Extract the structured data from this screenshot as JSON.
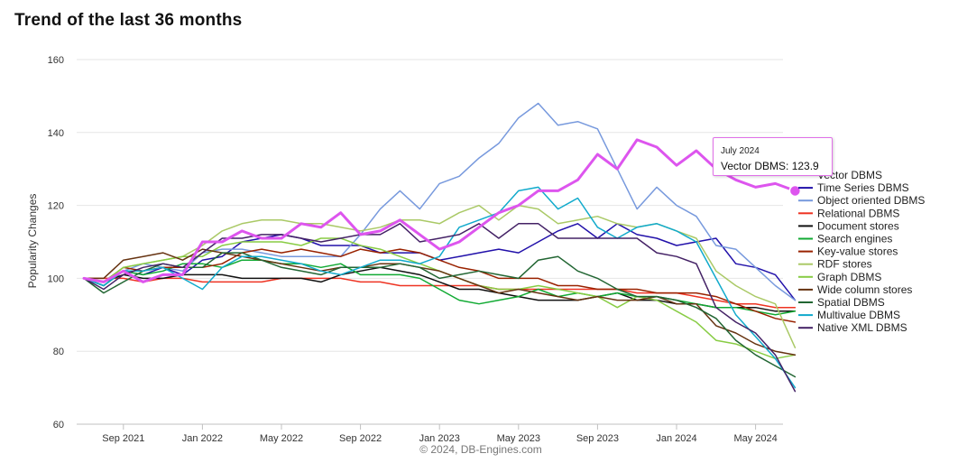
{
  "page_title": "Trend of the last 36 months",
  "credit": "© 2024, DB-Engines.com",
  "tooltip": {
    "date": "July 2024",
    "text": "Vector DBMS: 123.9"
  },
  "chart_data": {
    "type": "line",
    "title": "Trend of the last 36 months",
    "ylabel": "Popularity Changes",
    "xlabel": "",
    "ylim": [
      60,
      160
    ],
    "yticks": [
      60,
      80,
      100,
      120,
      140,
      160
    ],
    "x_start": "2021-07",
    "xticks": [
      {
        "label": "Sep 2021",
        "index": 2
      },
      {
        "label": "Jan 2022",
        "index": 6
      },
      {
        "label": "May 2022",
        "index": 10
      },
      {
        "label": "Sep 2022",
        "index": 14
      },
      {
        "label": "Jan 2023",
        "index": 18
      },
      {
        "label": "May 2023",
        "index": 22
      },
      {
        "label": "Sep 2023",
        "index": 26
      },
      {
        "label": "Jan 2024",
        "index": 30
      },
      {
        "label": "May 2024",
        "index": 34
      }
    ],
    "grid": "horizontal",
    "legend_position": "right",
    "series": [
      {
        "name": "Vector DBMS",
        "color": "#dd55ee",
        "width": 3,
        "values": [
          100,
          99,
          102,
          99,
          101,
          101,
          110,
          110,
          113,
          111,
          111,
          115,
          114,
          118,
          112,
          113,
          116,
          112,
          108,
          110,
          114,
          118,
          120,
          124,
          124,
          127,
          134,
          130,
          138,
          136,
          131,
          135,
          130,
          127,
          125,
          126,
          124
        ]
      },
      {
        "name": "Time Series DBMS",
        "color": "#2211aa",
        "width": 1.5,
        "values": [
          100,
          98,
          102,
          101,
          103,
          101,
          105,
          106,
          110,
          111,
          112,
          111,
          109,
          109,
          109,
          107,
          107,
          107,
          105,
          106,
          107,
          108,
          107,
          110,
          113,
          115,
          111,
          115,
          112,
          111,
          109,
          110,
          111,
          104,
          103,
          101,
          94
        ]
      },
      {
        "name": "Object oriented DBMS",
        "color": "#7799dd",
        "width": 1.5,
        "values": [
          100,
          98,
          102,
          104,
          103,
          102,
          107,
          108,
          108,
          107,
          106,
          106,
          106,
          106,
          112,
          119,
          124,
          119,
          126,
          128,
          133,
          137,
          144,
          148,
          142,
          143,
          141,
          130,
          119,
          125,
          120,
          117,
          109,
          108,
          103,
          98,
          94
        ]
      },
      {
        "name": "Relational DBMS",
        "color": "#ee3322",
        "width": 1.5,
        "values": [
          100,
          100,
          100,
          99,
          100,
          100,
          99,
          99,
          99,
          99,
          100,
          100,
          100,
          100,
          99,
          99,
          98,
          98,
          98,
          98,
          98,
          97,
          97,
          97,
          97,
          97,
          97,
          97,
          96,
          96,
          96,
          95,
          94,
          93,
          93,
          92,
          92
        ]
      },
      {
        "name": "Document stores",
        "color": "#111111",
        "width": 1.5,
        "values": [
          100,
          99,
          101,
          100,
          100,
          101,
          101,
          101,
          100,
          100,
          100,
          100,
          99,
          101,
          102,
          103,
          102,
          101,
          99,
          97,
          97,
          96,
          95,
          94,
          94,
          94,
          95,
          96,
          94,
          94,
          93,
          93,
          92,
          92,
          92,
          91,
          91
        ]
      },
      {
        "name": "Search engines",
        "color": "#11aa33",
        "width": 1.5,
        "values": [
          100,
          98,
          102,
          101,
          102,
          104,
          104,
          103,
          105,
          105,
          104,
          104,
          103,
          104,
          101,
          101,
          101,
          100,
          97,
          94,
          93,
          94,
          95,
          97,
          95,
          96,
          95,
          96,
          95,
          95,
          94,
          93,
          92,
          92,
          91,
          90,
          91
        ]
      },
      {
        "name": "Key-value stores",
        "color": "#992200",
        "width": 1.5,
        "values": [
          100,
          99,
          103,
          102,
          103,
          103,
          103,
          104,
          107,
          108,
          107,
          108,
          107,
          106,
          108,
          107,
          108,
          107,
          105,
          103,
          102,
          100,
          100,
          100,
          98,
          98,
          97,
          97,
          97,
          96,
          96,
          96,
          95,
          93,
          91,
          89,
          88
        ]
      },
      {
        "name": "RDF stores",
        "color": "#aac966",
        "width": 1.5,
        "values": [
          100,
          99,
          103,
          104,
          105,
          106,
          109,
          113,
          115,
          116,
          116,
          115,
          115,
          114,
          113,
          114,
          116,
          116,
          115,
          118,
          120,
          116,
          120,
          119,
          115,
          116,
          117,
          115,
          114,
          115,
          113,
          111,
          102,
          98,
          95,
          93,
          81
        ]
      },
      {
        "name": "Graph DBMS",
        "color": "#88cc44",
        "width": 1.5,
        "values": [
          100,
          99,
          103,
          104,
          105,
          106,
          106,
          109,
          110,
          110,
          110,
          109,
          111,
          111,
          109,
          108,
          106,
          104,
          102,
          100,
          98,
          97,
          97,
          98,
          97,
          96,
          95,
          92,
          95,
          94,
          91,
          88,
          83,
          82,
          80,
          78,
          79
        ]
      },
      {
        "name": "Wide column stores",
        "color": "#663311",
        "width": 1.5,
        "values": [
          100,
          100,
          105,
          106,
          107,
          105,
          108,
          107,
          106,
          105,
          104,
          103,
          102,
          103,
          103,
          104,
          104,
          103,
          102,
          100,
          98,
          96,
          97,
          96,
          95,
          94,
          95,
          94,
          94,
          95,
          93,
          93,
          87,
          85,
          82,
          80,
          79
        ]
      },
      {
        "name": "Spatial DBMS",
        "color": "#226633",
        "width": 1.5,
        "values": [
          100,
          96,
          99,
          102,
          104,
          103,
          103,
          107,
          107,
          105,
          103,
          102,
          101,
          103,
          103,
          103,
          104,
          103,
          100,
          101,
          102,
          101,
          100,
          105,
          106,
          102,
          100,
          97,
          95,
          95,
          94,
          92,
          89,
          83,
          79,
          76,
          73
        ]
      },
      {
        "name": "Multivalue DBMS",
        "color": "#11aacc",
        "width": 1.5,
        "values": [
          100,
          98,
          102,
          102,
          103,
          100,
          97,
          103,
          106,
          106,
          105,
          104,
          102,
          101,
          103,
          105,
          105,
          104,
          106,
          114,
          116,
          118,
          124,
          125,
          119,
          122,
          114,
          111,
          114,
          115,
          113,
          110,
          100,
          90,
          84,
          78,
          70
        ]
      },
      {
        "name": "Native XML DBMS",
        "color": "#442266",
        "width": 1.5,
        "values": [
          100,
          97,
          101,
          103,
          104,
          103,
          107,
          111,
          111,
          112,
          112,
          111,
          110,
          111,
          112,
          112,
          115,
          110,
          111,
          112,
          115,
          111,
          115,
          115,
          111,
          111,
          111,
          111,
          111,
          107,
          106,
          104,
          92,
          88,
          85,
          79,
          69
        ]
      }
    ]
  }
}
